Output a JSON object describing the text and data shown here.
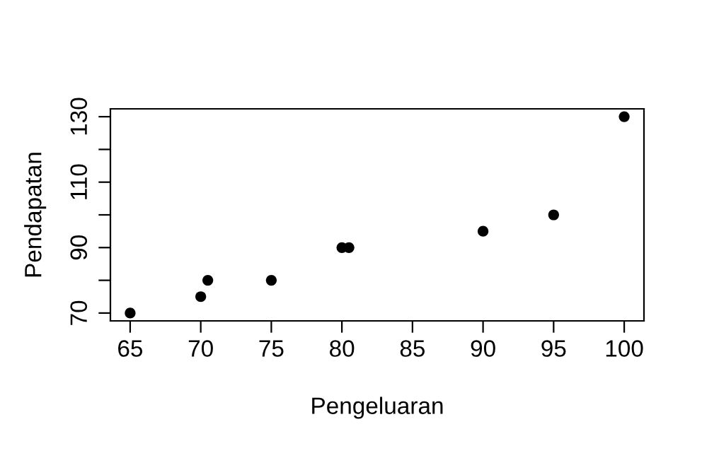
{
  "chart_data": {
    "type": "scatter",
    "xlabel": "Pengeluaran",
    "ylabel": "Pendapatan",
    "x": [
      65,
      70,
      70.5,
      75,
      80,
      80.5,
      90,
      95,
      100
    ],
    "series": [
      {
        "color": "#000000",
        "values": [
          70,
          75,
          80,
          80,
          90,
          90,
          95,
          100,
          130
        ]
      }
    ],
    "xlim": [
      63.6,
      101.4
    ],
    "ylim": [
      67.6,
      132.4
    ],
    "xticks": [
      65,
      70,
      75,
      80,
      85,
      90,
      95,
      100
    ],
    "yticks": [
      70,
      {
        "value": 80,
        "label": null
      },
      90,
      {
        "value": 100,
        "label": null
      },
      110,
      {
        "value": 120,
        "label": null
      },
      130
    ],
    "marker": "circle",
    "grid": false,
    "legend": false
  }
}
